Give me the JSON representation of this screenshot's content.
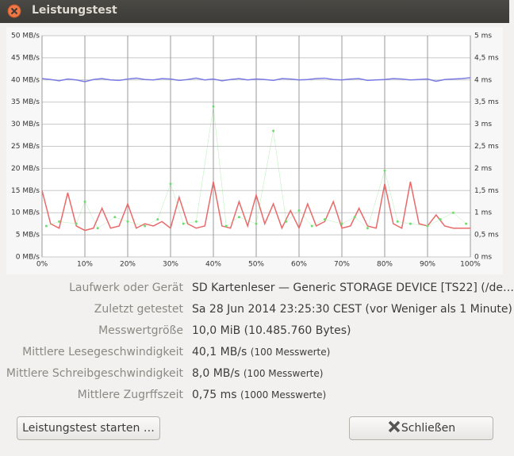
{
  "window": {
    "title": "Leistungstest"
  },
  "chart_data": {
    "type": "line",
    "xlim": [
      0,
      100
    ],
    "xticks": [
      {
        "value": 0,
        "label": "0%"
      },
      {
        "value": 10,
        "label": "10%"
      },
      {
        "value": 20,
        "label": "20%"
      },
      {
        "value": 30,
        "label": "30%"
      },
      {
        "value": 40,
        "label": "40%"
      },
      {
        "value": 50,
        "label": "50%"
      },
      {
        "value": 60,
        "label": "60%"
      },
      {
        "value": 70,
        "label": "70%"
      },
      {
        "value": 80,
        "label": "80%"
      },
      {
        "value": 90,
        "label": "90%"
      },
      {
        "value": 100,
        "label": "100%"
      }
    ],
    "ylim": [
      0,
      50
    ],
    "yticks": [
      {
        "value": 0,
        "label": "0 MB/s"
      },
      {
        "value": 5,
        "label": "5 MB/s"
      },
      {
        "value": 10,
        "label": "10 MB/s"
      },
      {
        "value": 15,
        "label": "15 MB/s"
      },
      {
        "value": 20,
        "label": "20 MB/s"
      },
      {
        "value": 25,
        "label": "25 MB/s"
      },
      {
        "value": 30,
        "label": "30 MB/s"
      },
      {
        "value": 35,
        "label": "35 MB/s"
      },
      {
        "value": 40,
        "label": "40 MB/s"
      },
      {
        "value": 45,
        "label": "45 MB/s"
      },
      {
        "value": 50,
        "label": "50 MB/s"
      }
    ],
    "y2lim": [
      0,
      5
    ],
    "y2ticks": [
      {
        "value": 0,
        "label": "0 ms"
      },
      {
        "value": 0.5,
        "label": "0,5 ms"
      },
      {
        "value": 1,
        "label": "1 ms"
      },
      {
        "value": 1.5,
        "label": "1,5 ms"
      },
      {
        "value": 2,
        "label": "2 ms"
      },
      {
        "value": 2.5,
        "label": "2,5 ms"
      },
      {
        "value": 3,
        "label": "3 ms"
      },
      {
        "value": 3.5,
        "label": "3,5 ms"
      },
      {
        "value": 4,
        "label": "4 ms"
      },
      {
        "value": 4.5,
        "label": "4,5 ms"
      },
      {
        "value": 5,
        "label": "5 ms"
      }
    ],
    "grid": true,
    "series": [
      {
        "color": "#7b7be6",
        "x": [
          0,
          2,
          4,
          6,
          8,
          10,
          12,
          14,
          16,
          18,
          20,
          22,
          24,
          26,
          28,
          30,
          32,
          34,
          36,
          38,
          40,
          42,
          44,
          46,
          48,
          50,
          52,
          54,
          56,
          58,
          60,
          62,
          64,
          66,
          68,
          70,
          72,
          74,
          76,
          78,
          80,
          82,
          84,
          86,
          88,
          90,
          92,
          94,
          96,
          98,
          100
        ],
        "values": [
          40.3,
          40.1,
          39.8,
          40.2,
          40,
          39.6,
          40.1,
          40.3,
          40,
          39.9,
          40.2,
          40.4,
          40.1,
          40,
          40.3,
          40.2,
          39.9,
          40.1,
          40.4,
          40,
          40.2,
          39.8,
          40.1,
          40.3,
          40,
          40.2,
          40.1,
          39.9,
          40.3,
          40.2,
          40,
          40.1,
          40.3,
          40.4,
          40.1,
          40,
          40.2,
          40.3,
          39.9,
          40,
          40.1,
          40.3,
          40.2,
          40,
          40.1,
          40.2,
          39.7,
          40.1,
          40.2,
          40.3,
          40.5
        ]
      },
      {
        "color": "#e86a6a",
        "x": [
          0,
          2,
          4,
          6,
          8,
          10,
          12,
          14,
          16,
          18,
          20,
          22,
          24,
          26,
          28,
          30,
          32,
          34,
          36,
          38,
          40,
          42,
          44,
          46,
          48,
          50,
          52,
          54,
          56,
          58,
          60,
          62,
          64,
          66,
          68,
          70,
          72,
          74,
          76,
          78,
          80,
          82,
          84,
          86,
          88,
          90,
          92,
          94,
          96,
          98,
          100
        ],
        "values": [
          15,
          7.5,
          6.5,
          14.5,
          7,
          6,
          6.5,
          11,
          6.5,
          7,
          12,
          6.5,
          7.5,
          7,
          8,
          6.5,
          13.5,
          7.5,
          6.5,
          7,
          17,
          7,
          6.5,
          12.5,
          7,
          14,
          7.5,
          12,
          6.5,
          10.5,
          6.5,
          12,
          7,
          8,
          12.5,
          6.5,
          7,
          11,
          7,
          6.5,
          16.5,
          7.5,
          6.5,
          17,
          7.5,
          7,
          9.5,
          7,
          6.5,
          6.5,
          6.5
        ]
      },
      {
        "type": "scatter",
        "axis": "y2",
        "color": "#6fdc6f",
        "x": [
          1,
          4,
          8,
          10,
          13,
          17,
          20,
          24,
          27,
          30,
          33,
          36,
          40,
          43,
          46,
          50,
          54,
          57,
          60,
          63,
          66,
          70,
          73,
          76,
          80,
          83,
          86,
          90,
          93,
          96,
          99
        ],
        "values": [
          0.7,
          0.8,
          0.75,
          1.25,
          0.65,
          0.9,
          0.8,
          0.7,
          0.85,
          1.65,
          0.75,
          0.8,
          3.4,
          0.7,
          0.9,
          0.75,
          2.85,
          0.8,
          1.05,
          0.7,
          0.85,
          0.75,
          0.9,
          0.65,
          1.95,
          0.8,
          0.75,
          0.7,
          0.85,
          1.0,
          0.75
        ]
      }
    ]
  },
  "info": [
    {
      "label": "Laufwerk oder Gerät",
      "value": "SD Kartenleser — Generic STORAGE DEVICE [TS22] (/de…"
    },
    {
      "label": "Zuletzt getestet",
      "value": "Sa 28 Jun 2014 23:25:30 CEST (vor Weniger als 1 Minute)"
    },
    {
      "label": "Messwertgröße",
      "value": "10,0 MiB (10.485.760 Bytes)"
    },
    {
      "label": "Mittlere Lesegeschwindigkeit",
      "value": "40,1 MB/s",
      "note": "(100 Messwerte)"
    },
    {
      "label": "Mittlere Schreibgeschwindigkeit",
      "value": "8,0 MB/s",
      "note": "(100 Messwerte)"
    },
    {
      "label": "Mittlere Zugrffszeit",
      "value": "0,75 ms",
      "note": "(1000 Messwerte)"
    }
  ],
  "buttons": {
    "start": "Leistungstest starten …",
    "close": "Schließen"
  }
}
